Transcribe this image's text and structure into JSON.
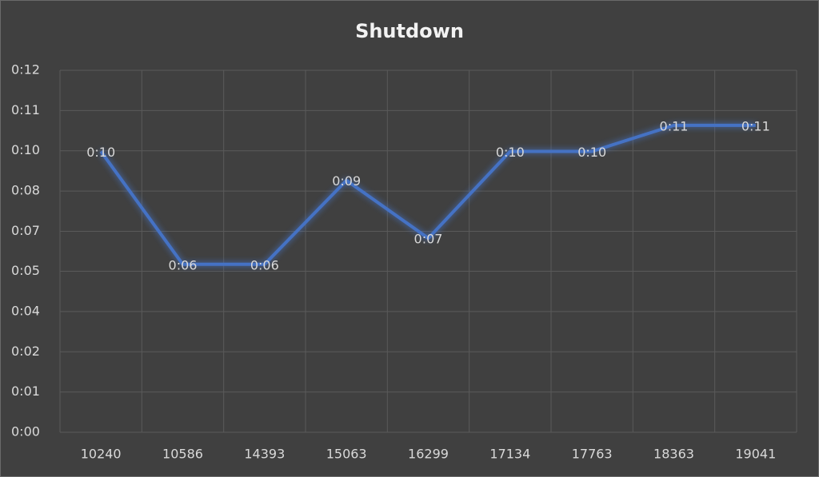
{
  "chart_data": {
    "type": "line",
    "title": "Shutdown",
    "categories": [
      "10240",
      "10586",
      "14393",
      "15063",
      "16299",
      "17134",
      "17763",
      "18363",
      "19041"
    ],
    "series": [
      {
        "name": "Shutdown",
        "color": "#4472c4",
        "values": [
          9.7,
          5.8,
          5.8,
          8.7,
          6.7,
          9.7,
          9.7,
          10.6,
          10.6
        ],
        "value_labels": [
          "0:10",
          "0:06",
          "0:06",
          "0:09",
          "0:07",
          "0:10",
          "0:10",
          "0:11",
          "0:11"
        ]
      }
    ],
    "ylim": [
      0,
      12.5
    ],
    "yticks": [
      {
        "value": 0,
        "label": "0:00"
      },
      {
        "value": 1.39,
        "label": "0:01"
      },
      {
        "value": 2.78,
        "label": "0:02"
      },
      {
        "value": 4.17,
        "label": "0:04"
      },
      {
        "value": 5.56,
        "label": "0:05"
      },
      {
        "value": 6.94,
        "label": "0:07"
      },
      {
        "value": 8.33,
        "label": "0:08"
      },
      {
        "value": 9.72,
        "label": "0:10"
      },
      {
        "value": 11.11,
        "label": "0:11"
      },
      {
        "value": 12.5,
        "label": "0:12"
      }
    ],
    "grid": true
  }
}
